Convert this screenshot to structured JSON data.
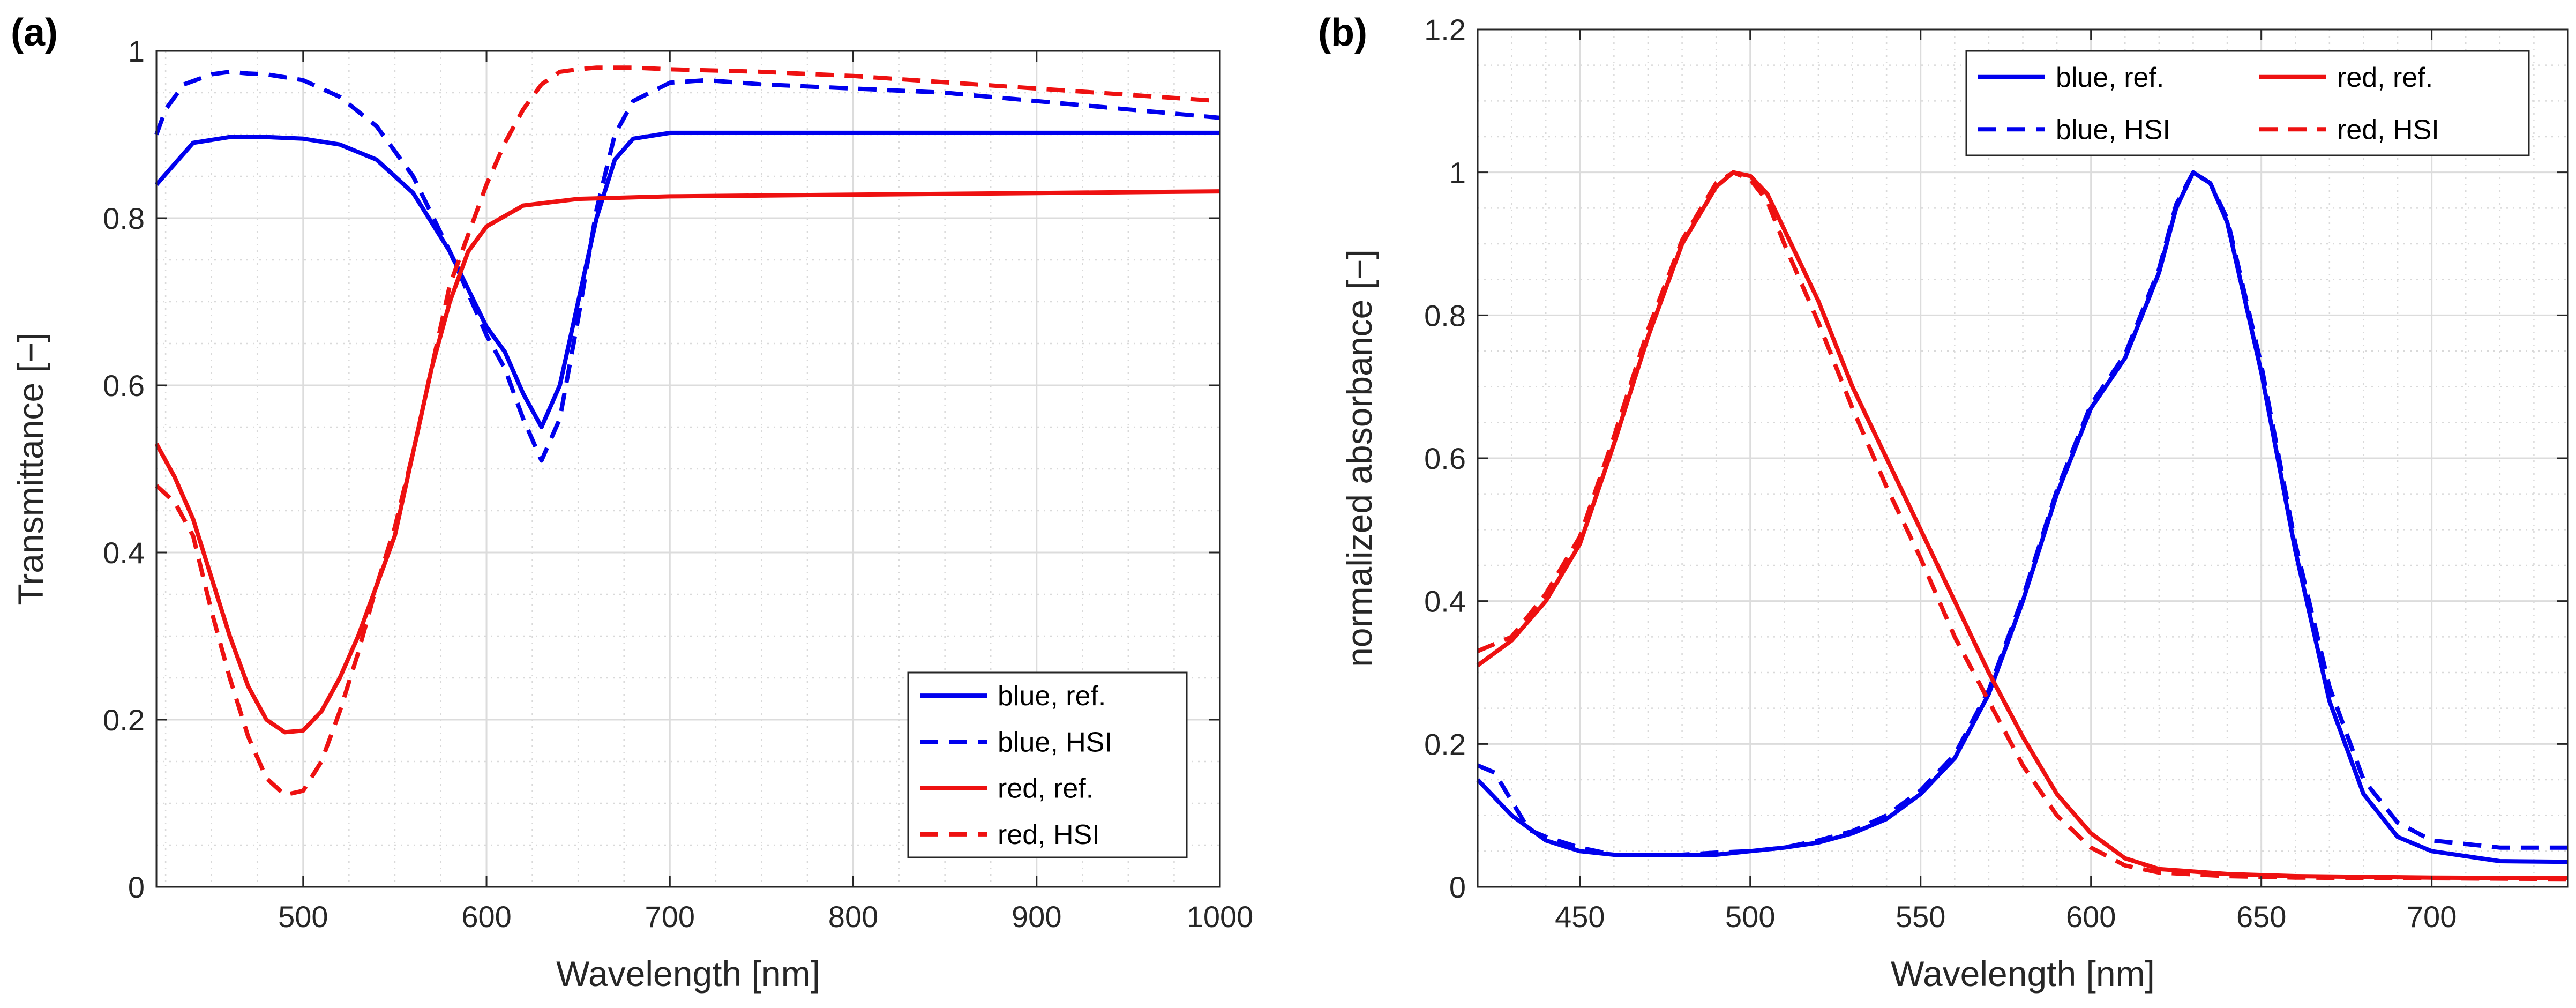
{
  "chart_data": [
    {
      "type": "line",
      "panel_label": "(a)",
      "title": "",
      "xlabel": "Wavelength [nm]",
      "ylabel": "Transmittance [−]",
      "xlim": [
        420,
        1000
      ],
      "ylim": [
        0,
        1
      ],
      "grid": true,
      "legend_position": "bottom-right",
      "xticks": [
        500,
        600,
        700,
        800,
        900,
        1000
      ],
      "xtick_labels": [
        "500",
        "600",
        "700",
        "800",
        "900",
        "1000"
      ],
      "yticks": [
        0,
        0.2,
        0.4,
        0.6,
        0.8,
        1
      ],
      "ytick_labels": [
        "0",
        "0.2",
        "0.4",
        "0.6",
        "0.8",
        "1"
      ],
      "series": [
        {
          "name": "blue, ref.",
          "color": "#0000ee",
          "dash": "solid",
          "x": [
            420,
            440,
            460,
            480,
            500,
            520,
            540,
            560,
            580,
            600,
            610,
            620,
            630,
            640,
            650,
            660,
            670,
            680,
            700,
            750,
            800,
            900,
            1000
          ],
          "values": [
            0.84,
            0.89,
            0.897,
            0.897,
            0.895,
            0.888,
            0.87,
            0.83,
            0.76,
            0.67,
            0.64,
            0.59,
            0.55,
            0.6,
            0.7,
            0.8,
            0.87,
            0.895,
            0.902,
            0.902,
            0.902,
            0.902,
            0.902
          ]
        },
        {
          "name": "blue, HSI",
          "color": "#0000ee",
          "dash": "dashed",
          "x": [
            420,
            425,
            435,
            450,
            460,
            470,
            480,
            500,
            520,
            540,
            560,
            580,
            600,
            610,
            620,
            630,
            640,
            650,
            660,
            670,
            680,
            700,
            720,
            750,
            800,
            850,
            900,
            950,
            1000
          ],
          "values": [
            0.9,
            0.93,
            0.96,
            0.972,
            0.975,
            0.973,
            0.972,
            0.965,
            0.945,
            0.91,
            0.85,
            0.76,
            0.66,
            0.62,
            0.56,
            0.51,
            0.56,
            0.68,
            0.81,
            0.9,
            0.94,
            0.962,
            0.965,
            0.96,
            0.955,
            0.95,
            0.94,
            0.93,
            0.92
          ]
        },
        {
          "name": "red, ref.",
          "color": "#ee1111",
          "dash": "solid",
          "x": [
            420,
            430,
            440,
            450,
            460,
            470,
            480,
            490,
            500,
            510,
            520,
            530,
            540,
            550,
            560,
            570,
            580,
            590,
            600,
            620,
            650,
            700,
            800,
            900,
            1000
          ],
          "values": [
            0.53,
            0.49,
            0.44,
            0.37,
            0.3,
            0.24,
            0.2,
            0.185,
            0.187,
            0.21,
            0.25,
            0.3,
            0.36,
            0.42,
            0.52,
            0.62,
            0.7,
            0.76,
            0.79,
            0.815,
            0.823,
            0.826,
            0.828,
            0.83,
            0.832
          ]
        },
        {
          "name": "red, HSI",
          "color": "#ee1111",
          "dash": "dashed",
          "x": [
            420,
            430,
            440,
            450,
            460,
            470,
            480,
            490,
            500,
            510,
            520,
            530,
            540,
            550,
            560,
            570,
            580,
            590,
            600,
            610,
            620,
            630,
            640,
            650,
            660,
            680,
            700,
            750,
            800,
            900,
            1000
          ],
          "values": [
            0.48,
            0.46,
            0.42,
            0.33,
            0.25,
            0.18,
            0.13,
            0.11,
            0.115,
            0.15,
            0.21,
            0.28,
            0.36,
            0.43,
            0.52,
            0.62,
            0.72,
            0.78,
            0.84,
            0.89,
            0.93,
            0.96,
            0.975,
            0.978,
            0.98,
            0.98,
            0.978,
            0.975,
            0.97,
            0.955,
            0.94
          ]
        }
      ]
    },
    {
      "type": "line",
      "panel_label": "(b)",
      "title": "",
      "xlabel": "Wavelength [nm]",
      "ylabel": "normalized absorbance [−]",
      "xlim": [
        420,
        740
      ],
      "ylim": [
        0,
        1.2
      ],
      "grid": true,
      "legend_position": "top-right",
      "xticks": [
        450,
        500,
        550,
        600,
        650,
        700
      ],
      "xtick_labels": [
        "450",
        "500",
        "550",
        "600",
        "650",
        "700"
      ],
      "yticks": [
        0,
        0.2,
        0.4,
        0.6,
        0.8,
        1,
        1.2
      ],
      "ytick_labels": [
        "0",
        "0.2",
        "0.4",
        "0.6",
        "0.8",
        "1",
        "1.2"
      ],
      "series": [
        {
          "name": "blue, ref.",
          "color": "#0000ee",
          "dash": "solid",
          "x": [
            420,
            430,
            440,
            450,
            460,
            470,
            480,
            490,
            500,
            510,
            520,
            530,
            540,
            550,
            560,
            570,
            580,
            590,
            600,
            610,
            620,
            625,
            630,
            635,
            640,
            650,
            660,
            670,
            680,
            690,
            700,
            720,
            740
          ],
          "values": [
            0.15,
            0.1,
            0.065,
            0.05,
            0.045,
            0.045,
            0.045,
            0.045,
            0.05,
            0.055,
            0.062,
            0.075,
            0.095,
            0.13,
            0.18,
            0.27,
            0.4,
            0.55,
            0.67,
            0.74,
            0.86,
            0.95,
            1.0,
            0.985,
            0.93,
            0.72,
            0.47,
            0.26,
            0.13,
            0.07,
            0.05,
            0.036,
            0.035
          ]
        },
        {
          "name": "blue, HSI",
          "color": "#0000ee",
          "dash": "dashed",
          "x": [
            420,
            425,
            430,
            435,
            440,
            450,
            460,
            470,
            480,
            490,
            500,
            510,
            520,
            530,
            540,
            550,
            560,
            570,
            580,
            590,
            600,
            610,
            620,
            625,
            630,
            635,
            640,
            650,
            660,
            670,
            680,
            690,
            700,
            720,
            740
          ],
          "values": [
            0.17,
            0.16,
            0.12,
            0.08,
            0.07,
            0.055,
            0.045,
            0.045,
            0.045,
            0.048,
            0.05,
            0.055,
            0.065,
            0.078,
            0.1,
            0.135,
            0.185,
            0.275,
            0.405,
            0.555,
            0.675,
            0.745,
            0.865,
            0.955,
            1.0,
            0.985,
            0.935,
            0.73,
            0.48,
            0.28,
            0.15,
            0.09,
            0.065,
            0.055,
            0.055
          ]
        },
        {
          "name": "red, ref.",
          "color": "#ee1111",
          "dash": "solid",
          "x": [
            420,
            430,
            440,
            450,
            460,
            470,
            480,
            490,
            495,
            500,
            505,
            510,
            520,
            530,
            540,
            550,
            560,
            570,
            580,
            590,
            600,
            610,
            620,
            640,
            660,
            700,
            740
          ],
          "values": [
            0.31,
            0.345,
            0.4,
            0.48,
            0.62,
            0.77,
            0.9,
            0.98,
            1.0,
            0.995,
            0.97,
            0.92,
            0.82,
            0.7,
            0.6,
            0.5,
            0.4,
            0.3,
            0.21,
            0.13,
            0.075,
            0.04,
            0.025,
            0.018,
            0.015,
            0.013,
            0.012
          ]
        },
        {
          "name": "red, HSI",
          "color": "#ee1111",
          "dash": "dashed",
          "x": [
            420,
            430,
            440,
            450,
            460,
            470,
            480,
            490,
            495,
            500,
            505,
            510,
            520,
            530,
            540,
            550,
            560,
            570,
            580,
            590,
            600,
            610,
            620,
            640,
            660,
            700,
            740
          ],
          "values": [
            0.33,
            0.35,
            0.41,
            0.49,
            0.63,
            0.78,
            0.905,
            0.985,
            1.0,
            0.99,
            0.96,
            0.9,
            0.79,
            0.67,
            0.56,
            0.46,
            0.35,
            0.26,
            0.17,
            0.1,
            0.055,
            0.03,
            0.02,
            0.015,
            0.013,
            0.012,
            0.011
          ]
        }
      ]
    }
  ]
}
